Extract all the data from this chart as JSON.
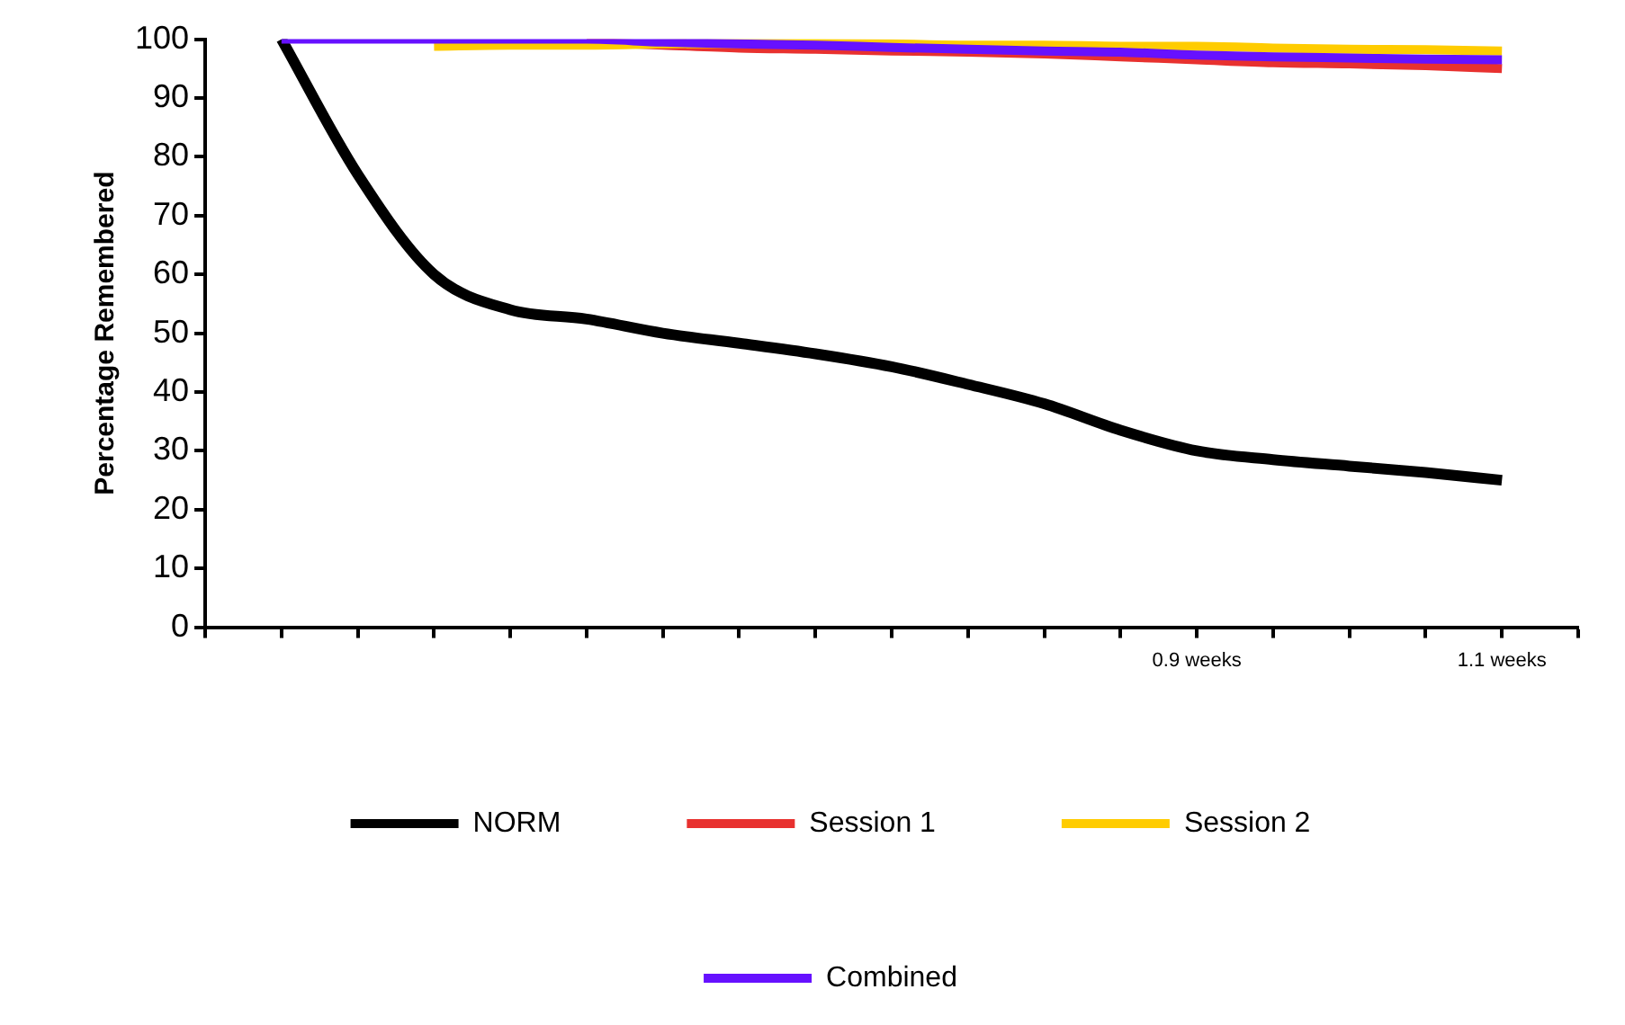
{
  "chart_data": {
    "type": "line",
    "ylabel": "Percentage Remembered",
    "categories": [
      null,
      null,
      null,
      null,
      null,
      null,
      null,
      null,
      null,
      null,
      null,
      null,
      null,
      "0.9 weeks",
      null,
      null,
      null,
      "1.1 weeks",
      null
    ],
    "series": [
      {
        "name": "NORM",
        "color": "#000000",
        "values": [
          null,
          100,
          77,
          60,
          54,
          52.4,
          50,
          48.3,
          46.5,
          44.3,
          41.3,
          38,
          33.5,
          30,
          28.5,
          27.4,
          26.3,
          25,
          null
        ]
      },
      {
        "name": "Session 1",
        "color": "#e8312f",
        "values": [
          null,
          null,
          null,
          null,
          null,
          99.5,
          99,
          98.5,
          98.3,
          98,
          97.8,
          97.5,
          97,
          96.5,
          96,
          95.8,
          95.5,
          95,
          null
        ]
      },
      {
        "name": "Session 2",
        "color": "#ffcc00",
        "values": [
          null,
          null,
          null,
          98.8,
          99,
          99,
          99.2,
          99.3,
          99.3,
          99.2,
          99,
          99,
          98.8,
          98.8,
          98.5,
          98.3,
          98.2,
          98,
          null
        ]
      },
      {
        "name": "Combined",
        "color": "#6611ff",
        "values": [
          null,
          100,
          100,
          100,
          100,
          100,
          99.5,
          99.2,
          99,
          98.6,
          98.3,
          98,
          97.8,
          97.3,
          97,
          96.8,
          96.6,
          96.5,
          null
        ]
      }
    ],
    "ylim": [
      0,
      100
    ],
    "yticks": [
      0,
      10,
      20,
      30,
      40,
      50,
      60,
      70,
      80,
      90,
      100
    ],
    "grid": false,
    "legend": "bottom",
    "marker": "none",
    "line_style": "solid"
  }
}
